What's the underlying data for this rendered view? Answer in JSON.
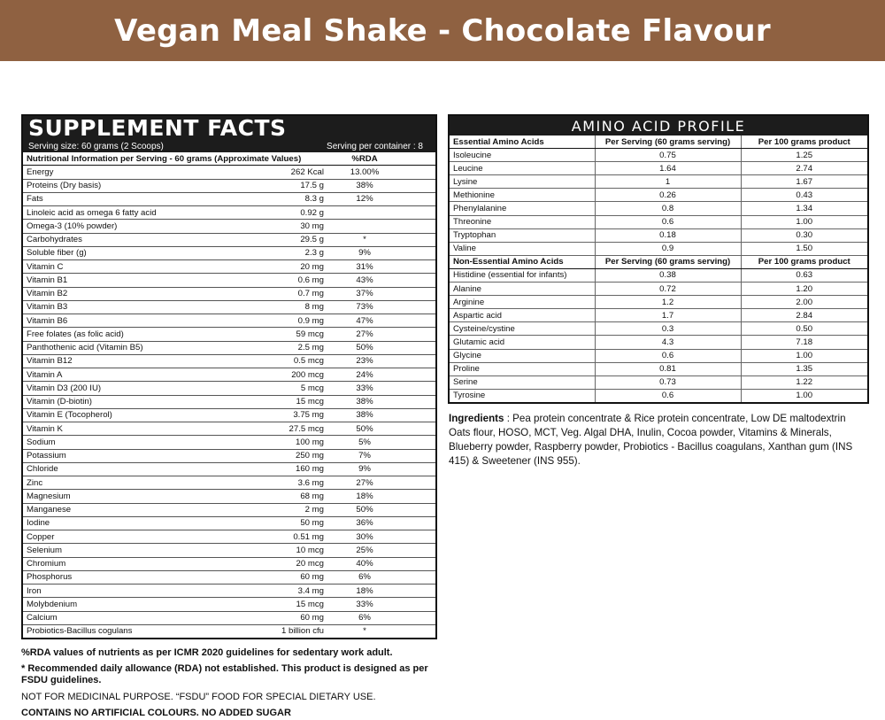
{
  "banner": {
    "title": "Vegan Meal Shake - Chocolate Flavour"
  },
  "supplement_facts": {
    "title": "SUPPLEMENT FACTS",
    "serving_size": "Serving size: 60 grams (2 Scoops)",
    "serving_per_container": "Serving per container : 8",
    "header": {
      "label": "Nutritional Information per Serving - 60 grams (Approximate Values)",
      "rda": "%RDA"
    },
    "rows": [
      {
        "name": "Energy",
        "amount": "262 Kcal",
        "rda": "13.00%"
      },
      {
        "name": "Proteins (Dry basis)",
        "amount": "17.5 g",
        "rda": "38%"
      },
      {
        "name": "Fats",
        "amount": "8.3 g",
        "rda": "12%"
      },
      {
        "name": "Linoleic acid as omega 6 fatty acid",
        "amount": "0.92 g",
        "rda": ""
      },
      {
        "name": "Omega-3 (10% powder)",
        "amount": "30 mg",
        "rda": ""
      },
      {
        "name": "Carbohydrates",
        "amount": "29.5 g",
        "rda": "*"
      },
      {
        "name": "Soluble fiber (g)",
        "amount": "2.3 g",
        "rda": "9%"
      },
      {
        "name": "Vitamin C",
        "amount": "20 mg",
        "rda": "31%"
      },
      {
        "name": "Vitamin B1",
        "amount": "0.6 mg",
        "rda": "43%"
      },
      {
        "name": "Vitamin B2",
        "amount": "0.7 mg",
        "rda": "37%"
      },
      {
        "name": "Vitamin B3",
        "amount": "8 mg",
        "rda": "73%"
      },
      {
        "name": "Vitamin B6",
        "amount": "0.9 mg",
        "rda": "47%"
      },
      {
        "name": "Free folates (as folic acid)",
        "amount": "59 mcg",
        "rda": "27%"
      },
      {
        "name": "Panthothenic acid (Vitamin B5)",
        "amount": "2.5 mg",
        "rda": "50%"
      },
      {
        "name": "Vitamin B12",
        "amount": "0.5 mcg",
        "rda": "23%"
      },
      {
        "name": "Vitamin A",
        "amount": "200 mcg",
        "rda": "24%"
      },
      {
        "name": "Vitamin D3 (200 IU)",
        "amount": "5 mcg",
        "rda": "33%"
      },
      {
        "name": "Vitamin (D-biotin)",
        "amount": "15 mcg",
        "rda": "38%"
      },
      {
        "name": "Vitamin E (Tocopherol)",
        "amount": "3.75 mg",
        "rda": "38%"
      },
      {
        "name": "Vitamin K",
        "amount": "27.5 mcg",
        "rda": "50%"
      },
      {
        "name": "Sodium",
        "amount": "100 mg",
        "rda": "5%"
      },
      {
        "name": "Potassium",
        "amount": "250 mg",
        "rda": "7%"
      },
      {
        "name": "Chloride",
        "amount": "160 mg",
        "rda": "9%"
      },
      {
        "name": "Zinc",
        "amount": "3.6 mg",
        "rda": "27%"
      },
      {
        "name": "Magnesium",
        "amount": "68 mg",
        "rda": "18%"
      },
      {
        "name": "Manganese",
        "amount": "2 mg",
        "rda": "50%"
      },
      {
        "name": "Iodine",
        "amount": "50 mg",
        "rda": "36%"
      },
      {
        "name": "Copper",
        "amount": "0.51 mg",
        "rda": "30%"
      },
      {
        "name": "Selenium",
        "amount": "10 mcg",
        "rda": "25%"
      },
      {
        "name": "Chromium",
        "amount": "20 mcg",
        "rda": "40%"
      },
      {
        "name": "Phosphorus",
        "amount": "60 mg",
        "rda": "6%"
      },
      {
        "name": "Iron",
        "amount": "3.4 mg",
        "rda": "18%"
      },
      {
        "name": "Molybdenium",
        "amount": "15 mcg",
        "rda": "33%"
      },
      {
        "name": "Calcium",
        "amount": "60 mg",
        "rda": "6%"
      },
      {
        "name": "Probiotics-Bacillus cogulans",
        "amount": "1 billion cfu",
        "rda": "*"
      }
    ]
  },
  "amino_profile": {
    "title": "AMINO ACID PROFILE",
    "essential": {
      "header": [
        "Essential Amino Acids",
        "Per Serving (60 grams serving)",
        "Per 100 grams product"
      ],
      "rows": [
        [
          "Isoleucine",
          "0.75",
          "1.25"
        ],
        [
          "Leucine",
          "1.64",
          "2.74"
        ],
        [
          "Lysine",
          "1",
          "1.67"
        ],
        [
          "Methionine",
          "0.26",
          "0.43"
        ],
        [
          "Phenylalanine",
          "0.8",
          "1.34"
        ],
        [
          "Threonine",
          "0.6",
          "1.00"
        ],
        [
          "Tryptophan",
          "0.18",
          "0.30"
        ],
        [
          "Valine",
          "0.9",
          "1.50"
        ]
      ]
    },
    "non_essential": {
      "header": [
        "Non-Essential Amino Acids",
        "Per Serving (60 grams serving)",
        "Per 100 grams product"
      ],
      "rows": [
        [
          "Histidine (essential for infants)",
          "0.38",
          "0.63"
        ],
        [
          "Alanine",
          "0.72",
          "1.20"
        ],
        [
          "Arginine",
          "1.2",
          "2.00"
        ],
        [
          "Aspartic acid",
          "1.7",
          "2.84"
        ],
        [
          "Cysteine/cystine",
          "0.3",
          "0.50"
        ],
        [
          "Glutamic acid",
          "4.3",
          "7.18"
        ],
        [
          "Glycine",
          "0.6",
          "1.00"
        ],
        [
          "Proline",
          "0.81",
          "1.35"
        ],
        [
          "Serine",
          "0.73",
          "1.22"
        ],
        [
          "Tyrosine",
          "0.6",
          "1.00"
        ]
      ]
    }
  },
  "ingredients": {
    "label": "Ingredients",
    "text": " : Pea protein concentrate & Rice protein concentrate, Low DE maltodextrin Oats flour, HOSO, MCT, Veg. Algal DHA, Inulin, Cocoa powder, Vitamins & Minerals, Blueberry powder, Raspberry powder, Probiotics - Bacillus coagulans, Xanthan gum (INS 415) & Sweetener (INS 955)."
  },
  "notes": {
    "rda_note": "%RDA values of nutrients as per ICMR 2020 guidelines for sedentary work adult.",
    "asterisk_note": "* Recommended daily allowance (RDA) not established. This product is designed as per FSDU guidelines.",
    "medicinal_note": "NOT FOR MEDICINAL PURPOSE. “FSDU” FOOD FOR SPECIAL DIETARY USE.",
    "colours_note": "CONTAINS NO ARTIFICIAL COLOURS. NO ADDED SUGAR"
  },
  "colors": {
    "banner": "#8f6141",
    "panel_header": "#1c1c1c"
  }
}
